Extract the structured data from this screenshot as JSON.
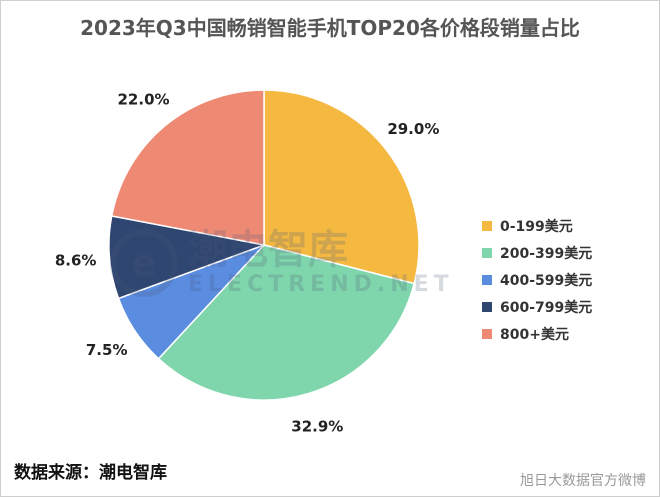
{
  "chart_data": {
    "type": "pie",
    "title": "2023年Q3中国畅销智能手机TOP20各价格段销量占比",
    "categories": [
      "0-199美元",
      "200-399美元",
      "400-599美元",
      "600-799美元",
      "800+美元"
    ],
    "values": [
      29.0,
      32.9,
      7.5,
      8.6,
      22.0
    ],
    "value_labels": [
      "29.0%",
      "32.9%",
      "7.5%",
      "8.6%",
      "22.0%"
    ],
    "colors": [
      "#F5B942",
      "#80D6AC",
      "#5A8CE0",
      "#2F4670",
      "#EE8A74"
    ],
    "start_angle": "12 o'clock",
    "direction": "clockwise",
    "legend_position": "right"
  },
  "source_label": "数据来源：潮电智库",
  "watermark": {
    "symbol": "e",
    "cn": "潮电智库",
    "en": "ELECTREND.NET"
  },
  "weibo_credit": "旭日大数据官方微博"
}
